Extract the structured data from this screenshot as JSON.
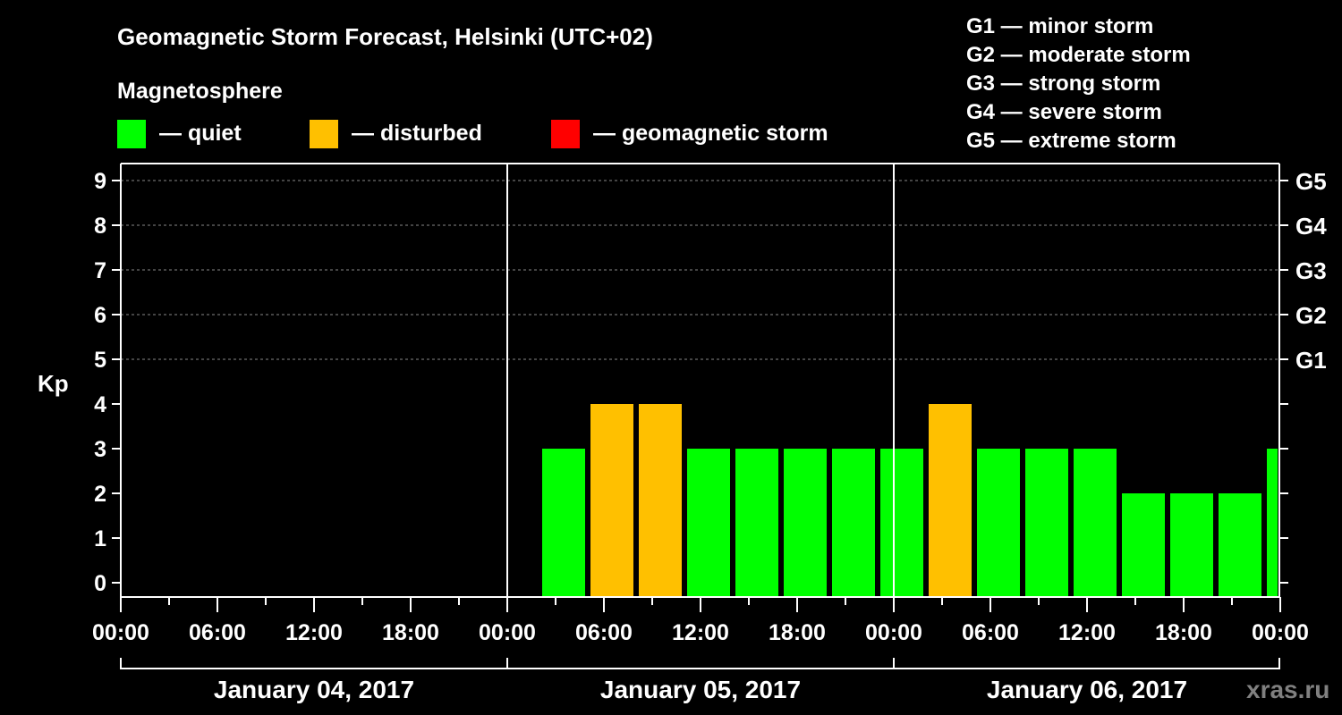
{
  "chart_data": {
    "type": "bar",
    "title": "Geomagnetic Storm Forecast, Helsinki (UTC+02)",
    "ylabel": "Kp",
    "ylim": [
      0,
      9
    ],
    "yticks": [
      "0",
      "1",
      "2",
      "3",
      "4",
      "5",
      "6",
      "7",
      "8",
      "9"
    ],
    "right_labels": [
      {
        "kp": 5,
        "label": "G1"
      },
      {
        "kp": 6,
        "label": "G2"
      },
      {
        "kp": 7,
        "label": "G3"
      },
      {
        "kp": 8,
        "label": "G4"
      },
      {
        "kp": 9,
        "label": "G5"
      }
    ],
    "xtick_labels": [
      "00:00",
      "06:00",
      "12:00",
      "18:00",
      "00:00",
      "06:00",
      "12:00",
      "18:00",
      "00:00",
      "06:00",
      "12:00",
      "18:00",
      "00:00"
    ],
    "dates": [
      "January 04, 2017",
      "January 05, 2017",
      "January 06, 2017"
    ],
    "bar_interval_hours": 3,
    "bars": [
      {
        "start_hour": 26,
        "kp": 3,
        "level": "quiet"
      },
      {
        "start_hour": 29,
        "kp": 4,
        "level": "disturbed"
      },
      {
        "start_hour": 32,
        "kp": 4,
        "level": "disturbed"
      },
      {
        "start_hour": 35,
        "kp": 3,
        "level": "quiet"
      },
      {
        "start_hour": 38,
        "kp": 3,
        "level": "quiet"
      },
      {
        "start_hour": 41,
        "kp": 3,
        "level": "quiet"
      },
      {
        "start_hour": 44,
        "kp": 3,
        "level": "quiet"
      },
      {
        "start_hour": 47,
        "kp": 3,
        "level": "quiet"
      },
      {
        "start_hour": 50,
        "kp": 4,
        "level": "disturbed"
      },
      {
        "start_hour": 53,
        "kp": 3,
        "level": "quiet"
      },
      {
        "start_hour": 56,
        "kp": 3,
        "level": "quiet"
      },
      {
        "start_hour": 59,
        "kp": 3,
        "level": "quiet"
      },
      {
        "start_hour": 62,
        "kp": 2,
        "level": "quiet"
      },
      {
        "start_hour": 65,
        "kp": 2,
        "level": "quiet"
      },
      {
        "start_hour": 68,
        "kp": 2,
        "level": "quiet"
      },
      {
        "start_hour": 71,
        "kp": 3,
        "level": "quiet"
      }
    ],
    "grid": true,
    "legend_title": "Magnetosphere",
    "legend": [
      {
        "label": "— quiet",
        "color": "#00ff00"
      },
      {
        "label": "— disturbed",
        "color": "#ffc000"
      },
      {
        "label": "— geomagnetic storm",
        "color": "#ff0000"
      }
    ],
    "scale": [
      "G1 — minor storm",
      "G2 — moderate storm",
      "G3 — strong storm",
      "G4 — severe storm",
      "G5 — extreme storm"
    ],
    "watermark": "xras.ru"
  },
  "colors": {
    "quiet": "#00ff00",
    "disturbed": "#ffc000",
    "storm": "#ff0000",
    "axis": "#ffffff",
    "watermark": "#808080"
  }
}
